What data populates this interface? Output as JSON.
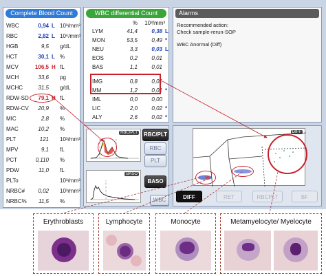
{
  "cbc": {
    "title": "Complete Blood Count",
    "rows": [
      {
        "name": "WBC",
        "value": "0,94",
        "flag": "L",
        "unit": "10³/mm³",
        "style": "blue"
      },
      {
        "name": "RBC",
        "value": "2,82",
        "flag": "L",
        "unit": "10⁶/mm³",
        "style": "blue"
      },
      {
        "name": "HGB",
        "value": "9,5",
        "flag": "",
        "unit": "g/dL",
        "style": ""
      },
      {
        "name": "HCT",
        "value": "30,1",
        "flag": "L",
        "unit": "%",
        "style": "blue"
      },
      {
        "name": "MCV",
        "value": "106,5",
        "flag": "H",
        "unit": "fL",
        "style": "red"
      },
      {
        "name": "MCH",
        "value": "33,6",
        "flag": "",
        "unit": "pg",
        "style": ""
      },
      {
        "name": "MCHC",
        "value": "31,5",
        "flag": "",
        "unit": "g/dL",
        "style": ""
      },
      {
        "name": "RDW-SD",
        "value": "79,1",
        "flag": "H",
        "unit": "fL",
        "style": "red"
      },
      {
        "name": "RDW-CV",
        "value": "20,9",
        "flag": "",
        "unit": "%",
        "style": ""
      },
      {
        "name": "MIC",
        "value": "2,8",
        "flag": "",
        "unit": "%",
        "style": ""
      },
      {
        "name": "MAC",
        "value": "10,2",
        "flag": "",
        "unit": "%",
        "style": ""
      },
      {
        "name": "PLT",
        "value": "121",
        "flag": "",
        "unit": "10³/mm³",
        "style": ""
      },
      {
        "name": "MPV",
        "value": "9,1",
        "flag": "",
        "unit": "fL",
        "style": ""
      },
      {
        "name": "PCT",
        "value": "0,110",
        "flag": "",
        "unit": "%",
        "style": ""
      },
      {
        "name": "PDW",
        "value": "11,0",
        "flag": "",
        "unit": "fL",
        "style": ""
      },
      {
        "name": "PLTo",
        "value": "",
        "flag": "",
        "unit": "10³/mm³",
        "style": ""
      },
      {
        "name": "NRBC#",
        "value": "0,02",
        "flag": "",
        "unit": "10³/mm³",
        "style": ""
      },
      {
        "name": "NRBC%",
        "value": "11,5",
        "flag": "",
        "unit": "%",
        "style": ""
      }
    ]
  },
  "wbc_diff": {
    "title": "WBC differential Count",
    "col_pct": "%",
    "col_abs": "10³/mm³",
    "rows": [
      {
        "name": "LYM",
        "pct": "41,4",
        "abs": "0,38",
        "flag": "L",
        "bold": true
      },
      {
        "name": "MON",
        "pct": "53,5",
        "abs": "0,49",
        "flag": "*",
        "bold": false
      },
      {
        "name": "NEU",
        "pct": "3,3",
        "abs": "0,03",
        "flag": "L",
        "bold": true
      },
      {
        "name": "EOS",
        "pct": "0,2",
        "abs": "0,01",
        "flag": "",
        "bold": false
      },
      {
        "name": "BAS",
        "pct": "1,1",
        "abs": "0,01",
        "flag": "",
        "bold": false
      },
      {
        "name": "IMG",
        "pct": "0,8",
        "abs": "0,01",
        "flag": "",
        "bold": false
      },
      {
        "name": "MM",
        "pct": "1,2",
        "abs": "0,01",
        "flag": "*",
        "bold": false
      },
      {
        "name": "IML",
        "pct": "0,0",
        "abs": "0,00",
        "flag": "",
        "bold": false
      },
      {
        "name": "LIC",
        "pct": "2,0",
        "abs": "0,02",
        "flag": "*",
        "bold": false
      },
      {
        "name": "ALY",
        "pct": "2,6",
        "abs": "0,02",
        "flag": "*",
        "bold": false
      }
    ]
  },
  "alarms": {
    "title": "Alarms",
    "line1": "Recommended action:",
    "line2": "Check sample-rerun-SOP",
    "line3": "WBC Anormal (Diff)"
  },
  "histograms": {
    "rbc_plt_label": "RBC/PLT",
    "baso_label": "BASO"
  },
  "buttons": {
    "rbc_plt": "RBC/PLT",
    "rbc": "RBC",
    "plt": "PLT",
    "baso": "BASO",
    "wbc": "WBC"
  },
  "scatter": {
    "label": "DIFF"
  },
  "tabs": {
    "diff": "DIFF",
    "ret": "RET",
    "rbcplt": "RBCPLT",
    "bf": "BF"
  },
  "cells": {
    "erythroblasts": "Erythroblasts",
    "lymphocyte": "Lymphocyte",
    "monocyte": "Monocyte",
    "metamyelocyte": "Metamyelocyte/ Myelocyte"
  },
  "colors": {
    "cbc_header": "#2f7bd9",
    "wbc_header": "#3aa63a",
    "highlight": "#c8202a",
    "low_flag": "#1f3fb0"
  }
}
